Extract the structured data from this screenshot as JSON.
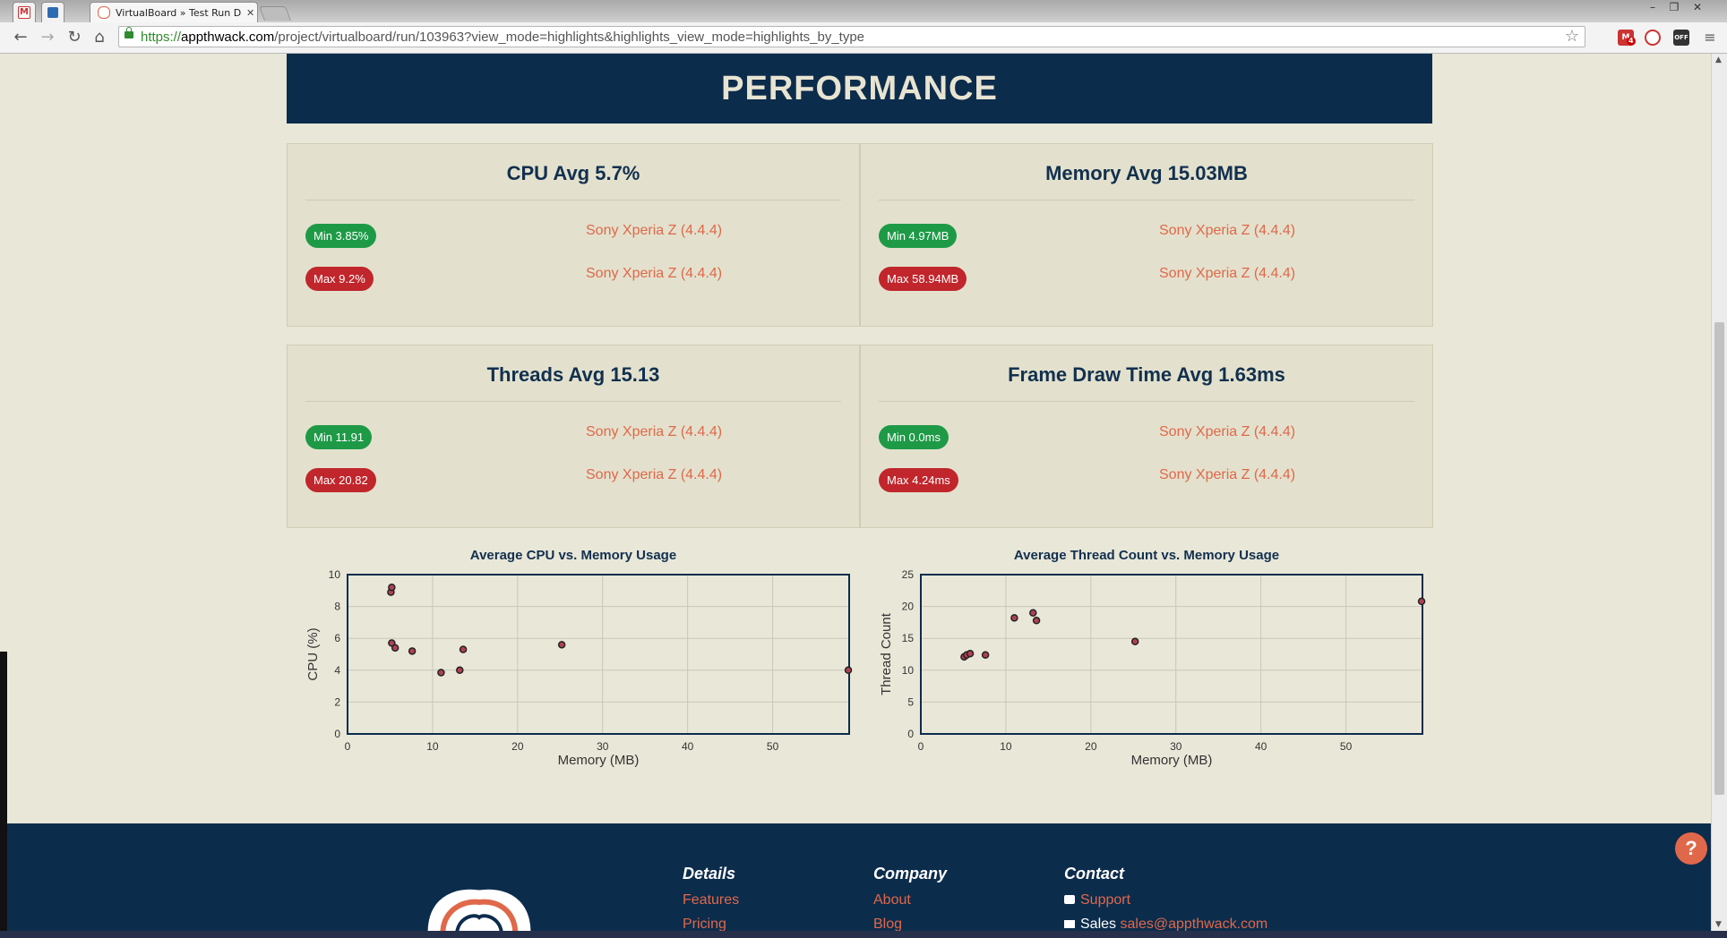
{
  "browser": {
    "tabs": [
      {
        "icon": "gmail-icon",
        "title": ""
      },
      {
        "icon": "trello-icon",
        "title": ""
      },
      {
        "icon": "appthwack-favicon",
        "title": "VirtualBoard » Test Run D",
        "active": true
      }
    ],
    "url_prefix": "https://",
    "url_host": "appthwack.com",
    "url_path": "/project/virtualboard/run/103963?view_mode=highlights&highlights_view_mode=highlights_by_type",
    "extension_badge": "4",
    "extension_off_label": "OFF"
  },
  "page": {
    "section_title": "PERFORMANCE",
    "cards": [
      {
        "title": "CPU Avg 5.7%",
        "min": "Min 3.85%",
        "min_device": "Sony Xperia Z (4.4.4)",
        "max": "Max 9.2%",
        "max_device": "Sony Xperia Z (4.4.4)"
      },
      {
        "title": "Memory Avg 15.03MB",
        "min": "Min 4.97MB",
        "min_device": "Sony Xperia Z (4.4.4)",
        "max": "Max 58.94MB",
        "max_device": "Sony Xperia Z (4.4.4)"
      },
      {
        "title": "Threads Avg 15.13",
        "min": "Min 11.91",
        "min_device": "Sony Xperia Z (4.4.4)",
        "max": "Max 20.82",
        "max_device": "Sony Xperia Z (4.4.4)"
      },
      {
        "title": "Frame Draw Time Avg 1.63ms",
        "min": "Min 0.0ms",
        "min_device": "Sony Xperia Z (4.4.4)",
        "max": "Max 4.24ms",
        "max_device": "Sony Xperia Z (4.4.4)"
      }
    ]
  },
  "chart_data": [
    {
      "type": "scatter",
      "title": "Average CPU vs. Memory Usage",
      "xlabel": "Memory (MB)",
      "ylabel": "CPU (%)",
      "xlim": [
        0,
        59
      ],
      "ylim": [
        0,
        10
      ],
      "xticks": [
        0,
        10,
        20,
        30,
        40,
        50
      ],
      "yticks": [
        0,
        2,
        4,
        6,
        8,
        10
      ],
      "grid": true,
      "points": [
        {
          "x": 5.1,
          "y": 8.9
        },
        {
          "x": 5.2,
          "y": 9.2
        },
        {
          "x": 5.2,
          "y": 5.7
        },
        {
          "x": 5.6,
          "y": 5.4
        },
        {
          "x": 7.6,
          "y": 5.2
        },
        {
          "x": 11.0,
          "y": 3.85
        },
        {
          "x": 13.2,
          "y": 4.0
        },
        {
          "x": 13.6,
          "y": 5.3
        },
        {
          "x": 25.2,
          "y": 5.6
        },
        {
          "x": 58.9,
          "y": 4.0
        }
      ],
      "color": "#b04055"
    },
    {
      "type": "scatter",
      "title": "Average Thread Count vs. Memory Usage",
      "xlabel": "Memory (MB)",
      "ylabel": "Thread Count",
      "xlim": [
        0,
        59
      ],
      "ylim": [
        0,
        25
      ],
      "xticks": [
        0,
        10,
        20,
        30,
        40,
        50
      ],
      "yticks": [
        0,
        5,
        10,
        15,
        20,
        25
      ],
      "grid": true,
      "points": [
        {
          "x": 5.1,
          "y": 12.1
        },
        {
          "x": 5.4,
          "y": 12.4
        },
        {
          "x": 5.8,
          "y": 12.6
        },
        {
          "x": 7.6,
          "y": 12.4
        },
        {
          "x": 11.0,
          "y": 18.2
        },
        {
          "x": 13.2,
          "y": 19.0
        },
        {
          "x": 13.6,
          "y": 17.8
        },
        {
          "x": 25.2,
          "y": 14.5
        },
        {
          "x": 58.9,
          "y": 20.8
        }
      ],
      "color": "#b04055"
    }
  ],
  "footer": {
    "details": {
      "heading": "Details",
      "links": [
        "Features",
        "Pricing"
      ]
    },
    "company": {
      "heading": "Company",
      "links": [
        "About",
        "Blog"
      ]
    },
    "contact": {
      "heading": "Contact",
      "support": "Support",
      "sales_label": "Sales",
      "sales_email": "sales@appthwack.com"
    },
    "help_label": "?"
  }
}
